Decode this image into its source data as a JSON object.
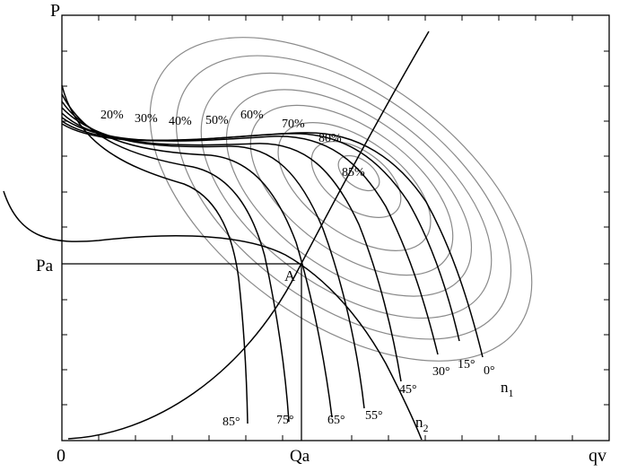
{
  "axes": {
    "y_label": "P",
    "x_label": "qv",
    "origin_label": "0",
    "pa_label": "Pa",
    "qa_label": "Qa",
    "point_label": "A"
  },
  "efficiency_labels": [
    "20%",
    "30%",
    "40%",
    "50%",
    "60%",
    "70%",
    "80%",
    "85%"
  ],
  "angle_labels": [
    "85°",
    "75°",
    "65°",
    "55°",
    "45°",
    "30°",
    "15°",
    "0°"
  ],
  "speed_labels": {
    "n1_base": "n",
    "n1_sub": "1",
    "n2_base": "n",
    "n2_sub": "2"
  },
  "colors": {
    "efficiency_rings": "#8a8a8a",
    "curves": "#000000",
    "frame": "#000000"
  }
}
